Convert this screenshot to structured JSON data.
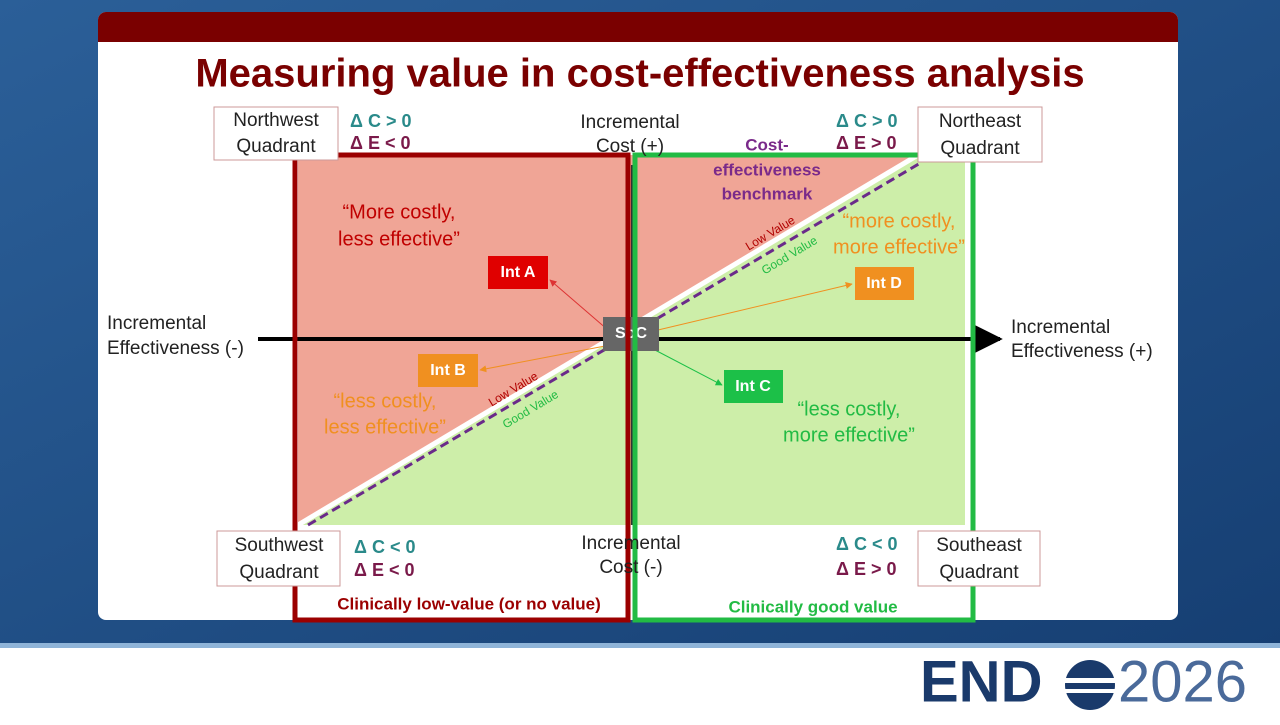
{
  "slide": {
    "title": "Measuring value in cost-effectiveness analysis",
    "quadrants": {
      "northwest": {
        "label": [
          "Northwest",
          "Quadrant"
        ],
        "delta": [
          "Δ C > 0",
          "Δ E < 0"
        ]
      },
      "northeast": {
        "label": [
          "Northeast",
          "Quadrant"
        ],
        "delta": [
          "Δ C > 0",
          "Δ E > 0"
        ]
      },
      "southwest": {
        "label": [
          "Southwest",
          "Quadrant"
        ],
        "delta": [
          "Δ C < 0",
          "Δ E < 0"
        ]
      },
      "southeast": {
        "label": [
          "Southeast",
          "Quadrant"
        ],
        "delta": [
          "Δ C < 0",
          "Δ E > 0"
        ]
      }
    },
    "axes": {
      "cost_positive": [
        "Incremental",
        "Cost (+)"
      ],
      "cost_negative": [
        "Incremental",
        "Cost (-)"
      ],
      "effect_negative": [
        "Incremental",
        "Effectiveness (-)"
      ],
      "effect_positive": [
        "Incremental",
        "Effectiveness (+)"
      ]
    },
    "benchmark": [
      "Cost-",
      "effectiveness",
      "benchmark"
    ],
    "value_tags": {
      "upper": [
        "Low Value",
        "Good Value"
      ],
      "lower": [
        "Low Value",
        "Good Value"
      ]
    },
    "descriptions": {
      "northwest": [
        "“More costly,",
        "less effective”"
      ],
      "northeast": [
        "“more costly,",
        "more effective”"
      ],
      "southwest": [
        "“less costly,",
        "less effective”"
      ],
      "southeast": [
        "“less costly,",
        "more effective”"
      ]
    },
    "interventions": [
      "Int A",
      "Int B",
      "Int C",
      "Int D"
    ],
    "reference": "SoC",
    "zones": [
      "Clinically low-value (or no value)",
      "Clinically good value"
    ]
  },
  "logo": {
    "left": "END",
    "right": "2026"
  }
}
